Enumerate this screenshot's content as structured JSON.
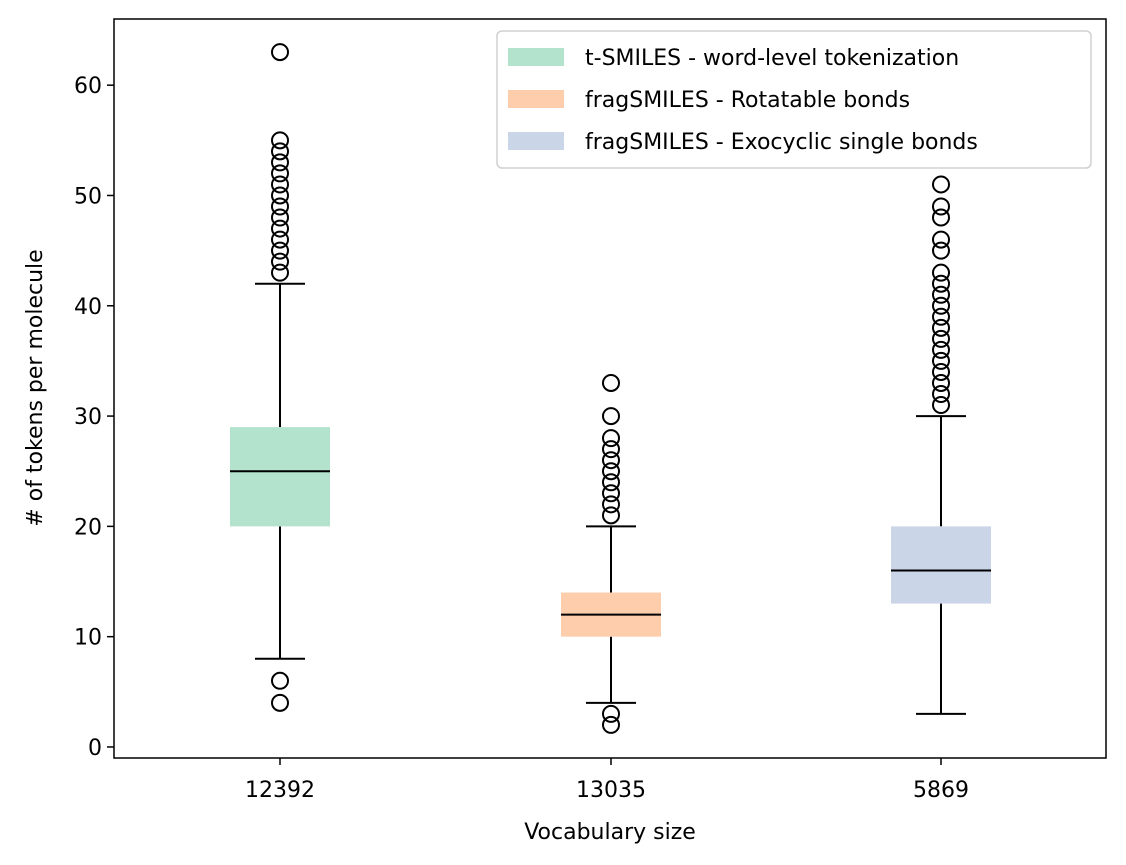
{
  "chart_data": {
    "type": "box",
    "title": "",
    "xlabel": "Vocabulary size",
    "ylabel": "# of tokens per molecule",
    "ylim": [
      -1,
      66
    ],
    "yticks": [
      0,
      10,
      20,
      30,
      40,
      50,
      60
    ],
    "grid": false,
    "legend_placement": "top-right",
    "categories": [
      "12392",
      "13035",
      "5869"
    ],
    "series": [
      {
        "name": "t-SMILES - word-level tokenization",
        "color": "#b3e2cd",
        "whisker_low": 8,
        "q1": 20,
        "median": 25,
        "q3": 29,
        "whisker_high": 42,
        "outliers": [
          4,
          6,
          43,
          44,
          45,
          46,
          47,
          48,
          49,
          50,
          51,
          52,
          53,
          54,
          55,
          63
        ]
      },
      {
        "name": "fragSMILES - Rotatable bonds",
        "color": "#fdcdac",
        "whisker_low": 4,
        "q1": 10,
        "median": 12,
        "q3": 14,
        "whisker_high": 20,
        "outliers": [
          2,
          3,
          21,
          22,
          23,
          24,
          25,
          26,
          27,
          28,
          30,
          33
        ]
      },
      {
        "name": "fragSMILES - Exocyclic single bonds",
        "color": "#cbd5e8",
        "whisker_low": 3,
        "q1": 13,
        "median": 16,
        "q3": 20,
        "whisker_high": 30,
        "outliers": [
          31,
          32,
          33,
          34,
          35,
          36,
          37,
          38,
          39,
          40,
          41,
          42,
          43,
          45,
          46,
          48,
          49,
          51
        ]
      }
    ]
  }
}
